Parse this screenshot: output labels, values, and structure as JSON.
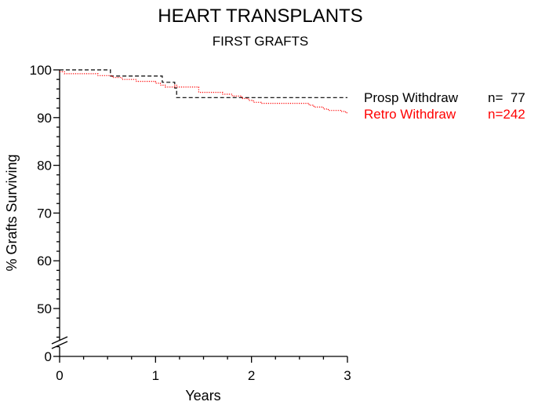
{
  "chart_data": {
    "type": "line",
    "title": "HEART TRANSPLANTS",
    "subtitle": "FIRST GRAFTS",
    "xlabel": "Years",
    "ylabel": "% Grafts Surviving",
    "xlim": [
      0,
      3
    ],
    "ylim": [
      0,
      100
    ],
    "axis_break": true,
    "step": true,
    "grid": false,
    "legend_position": "right",
    "x_ticks": [
      "0",
      "1",
      "2",
      "3"
    ],
    "y_ticks": [
      "0",
      "50",
      "60",
      "70",
      "80",
      "90",
      "100"
    ],
    "series": [
      {
        "name": "Prosp Withdraw",
        "n_label": "n=  77",
        "color": "#000000",
        "dash": "dashed",
        "points": [
          [
            0,
            100
          ],
          [
            0.53,
            98.7
          ],
          [
            1.07,
            97.4
          ],
          [
            1.2,
            96.2
          ],
          [
            1.22,
            94.2
          ],
          [
            3.0,
            94.2
          ]
        ]
      },
      {
        "name": "Retro Withdraw",
        "n_label": "n=242",
        "color": "#ff0000",
        "dash": "dotted",
        "points": [
          [
            0,
            99.6
          ],
          [
            0.05,
            99.2
          ],
          [
            0.4,
            98.8
          ],
          [
            0.55,
            98.4
          ],
          [
            0.65,
            98.0
          ],
          [
            0.8,
            97.6
          ],
          [
            1.0,
            97.2
          ],
          [
            1.05,
            96.8
          ],
          [
            1.1,
            96.4
          ],
          [
            1.2,
            96.8
          ],
          [
            1.22,
            96.4
          ],
          [
            1.45,
            95.3
          ],
          [
            1.7,
            94.9
          ],
          [
            1.8,
            94.5
          ],
          [
            1.9,
            94.0
          ],
          [
            1.97,
            93.6
          ],
          [
            2.02,
            93.2
          ],
          [
            2.1,
            93.0
          ],
          [
            2.6,
            92.6
          ],
          [
            2.65,
            92.2
          ],
          [
            2.75,
            91.8
          ],
          [
            2.8,
            91.5
          ],
          [
            2.93,
            91.3
          ],
          [
            2.98,
            91.0
          ],
          [
            3.0,
            91.0
          ]
        ]
      }
    ]
  }
}
